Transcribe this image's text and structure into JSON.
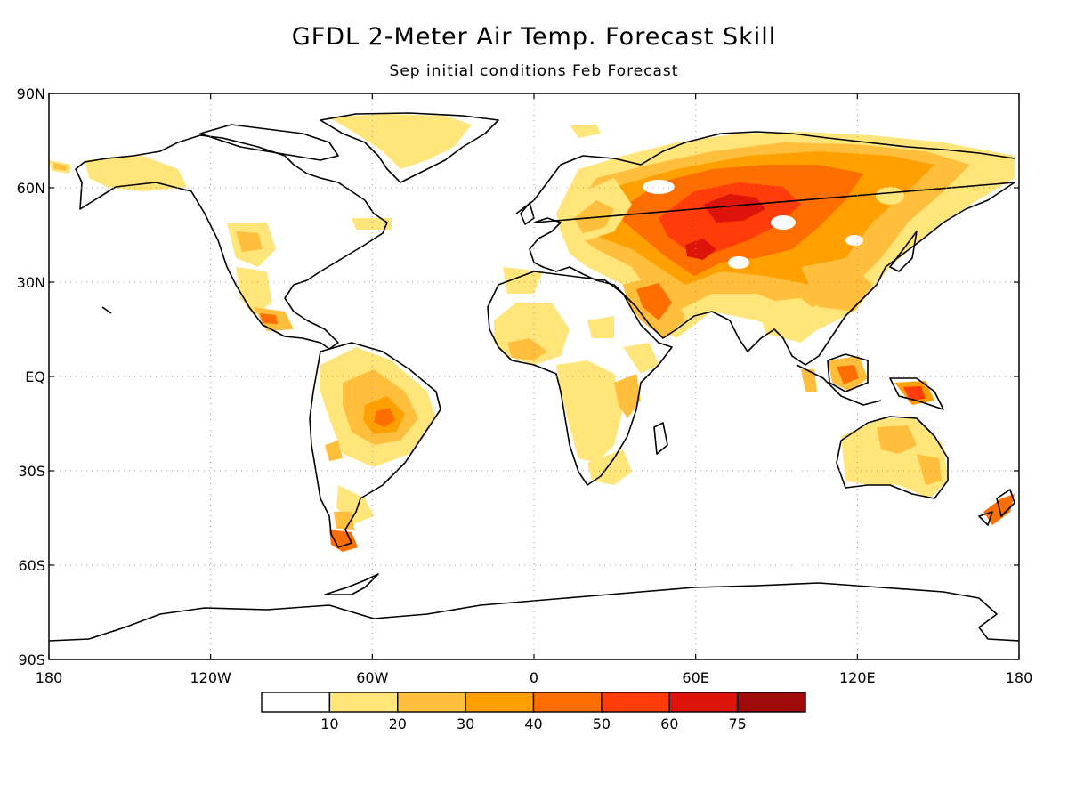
{
  "title": "GFDL 2-Meter Air Temp. Forecast Skill",
  "subtitle": "Sep initial conditions   Feb Forecast",
  "axes": {
    "lon_labels": [
      "180",
      "120W",
      "60W",
      "0",
      "60E",
      "120E",
      "180"
    ],
    "lat_labels": [
      "90N",
      "60N",
      "30N",
      "EQ",
      "30S",
      "60S",
      "90S"
    ],
    "lon_range": [
      -180,
      180
    ],
    "lat_range": [
      -90,
      90
    ],
    "grid": "dotted"
  },
  "colorbar": {
    "labels": [
      "10",
      "20",
      "30",
      "40",
      "50",
      "60",
      "75"
    ],
    "colors": [
      "#ffffff",
      "#ffe57a",
      "#ffbe3c",
      "#ffa000",
      "#ff6e00",
      "#ff3c0a",
      "#dc140a",
      "#a00a0a"
    ]
  },
  "chart_data": {
    "type": "heatmap",
    "title": "GFDL 2-Meter Air Temp. Forecast Skill",
    "subtitle": "Sep initial conditions   Feb Forecast",
    "levels": [
      10,
      20,
      30,
      40,
      50,
      60,
      75
    ],
    "regions": [
      {
        "lon": 70,
        "lat": 57,
        "level": 50
      },
      {
        "lon": 75,
        "lat": 42,
        "level": 50
      },
      {
        "lon": 60,
        "lat": 50,
        "level": 40
      },
      {
        "lon": 110,
        "lat": 55,
        "level": 40
      },
      {
        "lon": 120,
        "lat": 65,
        "level": 30
      },
      {
        "lon": 95,
        "lat": 35,
        "level": 30
      },
      {
        "lon": 50,
        "lat": 30,
        "level": 30
      },
      {
        "lon": 20,
        "lat": 50,
        "level": 20
      },
      {
        "lon": 145,
        "lat": -5,
        "level": 50
      },
      {
        "lon": 115,
        "lat": 0,
        "level": 40
      },
      {
        "lon": -55,
        "lat": -8,
        "level": 40
      },
      {
        "lon": -72,
        "lat": -52,
        "level": 40
      },
      {
        "lon": -100,
        "lat": 20,
        "level": 30
      },
      {
        "lon": 170,
        "lat": -42,
        "level": 40
      },
      {
        "lon": 135,
        "lat": -22,
        "level": 20
      },
      {
        "lon": 25,
        "lat": -25,
        "level": 20
      },
      {
        "lon": -115,
        "lat": 38,
        "level": 20
      }
    ]
  }
}
